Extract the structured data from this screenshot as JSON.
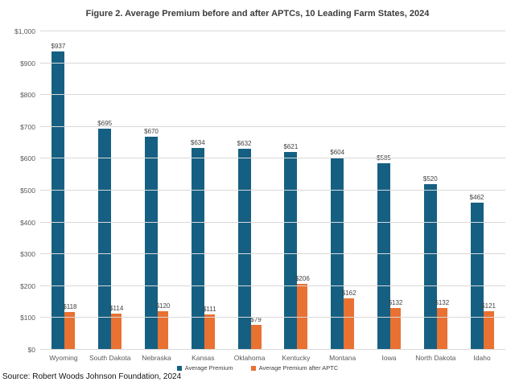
{
  "source": "Source: Robert Woods Johnson Foundation, 2024",
  "chart_data": {
    "type": "bar",
    "title": "Figure 2. Average Premium before and after APTCs, 10 Leading Farm States, 2024",
    "categories": [
      "Wyoming",
      "South Dakota",
      "Nebraska",
      "Kansas",
      "Oklahoma",
      "Kentucky",
      "Montana",
      "Iowa",
      "North Dakota",
      "Idaho"
    ],
    "series": [
      {
        "name": "Average Premium",
        "color": "#156082",
        "values": [
          937,
          695,
          670,
          634,
          632,
          621,
          604,
          585,
          520,
          462
        ]
      },
      {
        "name": "Average Premium after APTC",
        "color": "#E97132",
        "values": [
          118,
          114,
          120,
          111,
          79,
          206,
          162,
          132,
          132,
          121
        ]
      }
    ],
    "ylim": [
      0,
      1000
    ],
    "ytick_labels": [
      "$0",
      "$100",
      "$200",
      "$300",
      "$400",
      "$500",
      "$600",
      "$700",
      "$800",
      "$900",
      "$1,000"
    ],
    "grid": true,
    "legend_position": "bottom",
    "data_label_prefix": "$",
    "gridline_color": "#d9d9d9"
  }
}
